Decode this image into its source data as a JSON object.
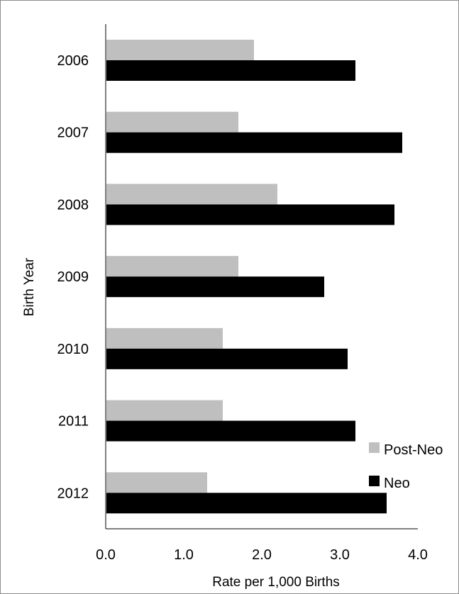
{
  "chart_data": {
    "type": "bar",
    "orientation": "horizontal",
    "title": "",
    "xlabel": "Rate per 1,000 Births",
    "ylabel": "Birth Year",
    "categories": [
      "2006",
      "2007",
      "2008",
      "2009",
      "2010",
      "2011",
      "2012"
    ],
    "series": [
      {
        "name": "Post-Neo",
        "color": "#bfbfbf",
        "values": [
          1.9,
          1.7,
          2.2,
          1.7,
          1.5,
          1.5,
          1.3
        ]
      },
      {
        "name": "Neo",
        "color": "#000000",
        "values": [
          3.2,
          3.8,
          3.7,
          2.8,
          3.1,
          3.2,
          3.6
        ]
      }
    ],
    "xlim": [
      0,
      4
    ],
    "xticks": [
      "0.0",
      "1.0",
      "2.0",
      "3.0",
      "4.0"
    ],
    "grid": false,
    "legend": {
      "position": "bottom-right",
      "entries": [
        "Post-Neo",
        "Neo"
      ]
    }
  }
}
